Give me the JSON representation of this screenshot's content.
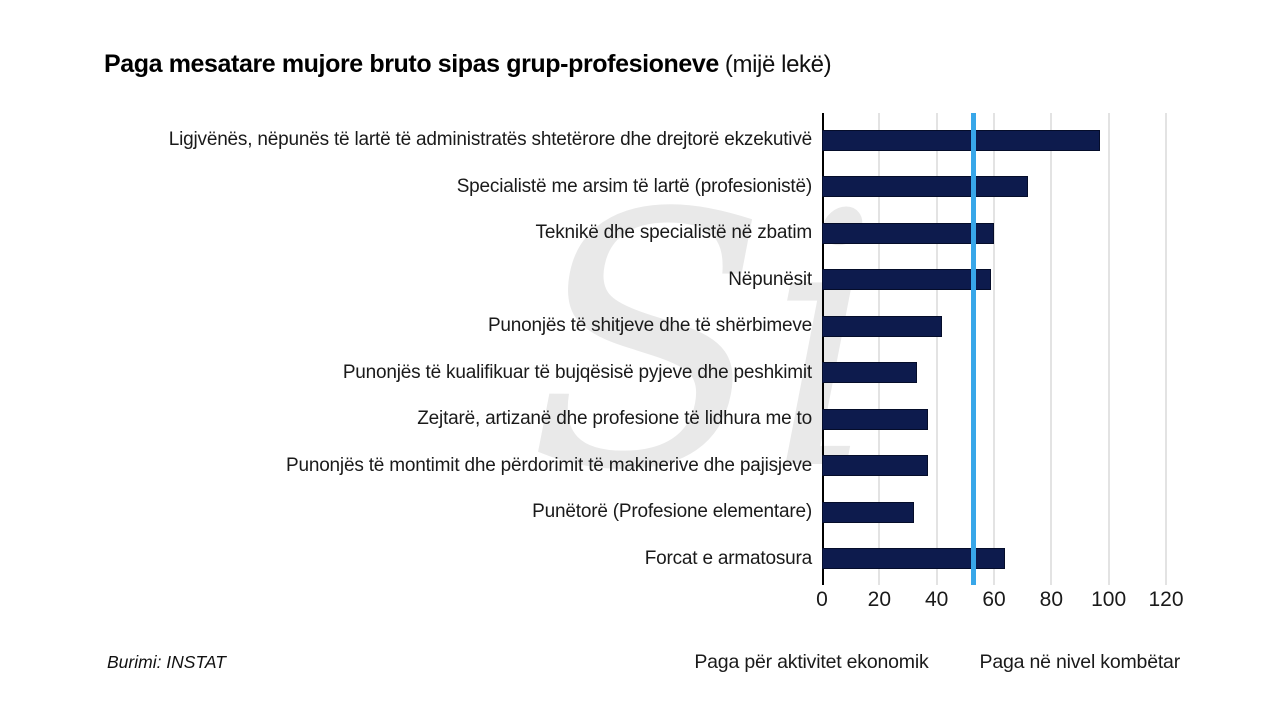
{
  "title": {
    "main": "Paga mesatare mujore bruto sipas grup-profesioneve",
    "unit": "(mijë lekë)"
  },
  "source": "Burimi: INSTAT",
  "watermark": "Si",
  "colors": {
    "bar": "#0d1b4d",
    "national_line": "#38a7e9",
    "grid": "#e3e3e3",
    "axis": "#000000",
    "watermark": "#e9e9e9"
  },
  "legend": [
    {
      "label": "Paga për aktivitet ekonomik",
      "color": "#0d1b4d"
    },
    {
      "label": "Paga në nivel kombëtar",
      "color": "#38a7e9"
    }
  ],
  "chart_data": {
    "type": "bar",
    "orientation": "horizontal",
    "title": "Paga mesatare mujore bruto sipas grup-profesioneve (mijë lekë)",
    "categories": [
      "Ligjvënës, nëpunës të lartë të administratës shtetërore dhe drejtorë ekzekutivë",
      "Specialistë me arsim të lartë (profesionistë)",
      "Teknikë dhe specialistë në zbatim",
      "Nëpunësit",
      "Punonjës të shitjeve dhe të shërbimeve",
      "Punonjës të kualifikuar të bujqësisë pyjeve dhe peshkimit",
      "Zejtarë, artizanë dhe profesione të lidhura me to",
      "Punonjës të montimit dhe përdorimit të makinerive dhe pajisjeve",
      "Punëtorë (Profesione elementare)",
      "Forcat e armatosura"
    ],
    "series": [
      {
        "name": "Paga për aktivitet ekonomik",
        "values": [
          97,
          72,
          60,
          59,
          42,
          33,
          37,
          37,
          32,
          64
        ]
      }
    ],
    "national_level_value": 53,
    "x_ticks": [
      0,
      20,
      40,
      60,
      80,
      100,
      120
    ],
    "xlim": [
      0,
      130
    ],
    "xlabel": "",
    "ylabel": "",
    "grid": true,
    "legend_position": "bottom-right"
  }
}
